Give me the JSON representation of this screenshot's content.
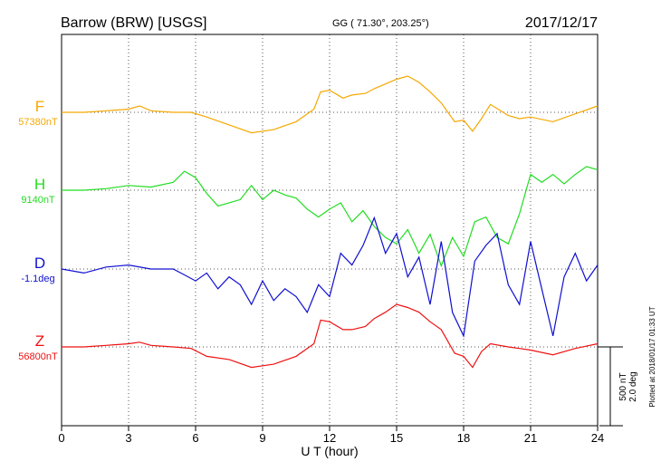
{
  "header": {
    "station": "Barrow (BRW)  [USGS]",
    "coords": "GG ( 71.30°, 203.25°)",
    "date": "2017/12/17"
  },
  "scale": {
    "nt": "500 nT",
    "deg": "2.0 deg"
  },
  "plotted": "Plotted at 2018/01/17 01:33 UT",
  "chart_data": {
    "type": "line",
    "xlabel": "U T (hour)",
    "xlim": [
      0,
      24
    ],
    "xticks": [
      "0",
      "3",
      "6",
      "9",
      "12",
      "15",
      "18",
      "21",
      "24"
    ],
    "grid": true,
    "series": [
      {
        "name": "F",
        "baseline_label": "57380nT",
        "color": "#f5a800",
        "x": [
          0,
          1,
          2,
          3,
          3.5,
          4,
          5,
          5.8,
          6.5,
          7.5,
          8.5,
          9.5,
          10.5,
          11.3,
          11.6,
          12,
          12.6,
          13,
          13.6,
          14,
          14.5,
          15,
          15.5,
          16,
          16.5,
          17,
          17.6,
          18,
          18.4,
          18.8,
          19.2,
          20,
          20.5,
          21,
          22,
          23,
          24
        ],
        "y": [
          0,
          0,
          10,
          20,
          40,
          10,
          0,
          0,
          -30,
          -80,
          -130,
          -110,
          -60,
          20,
          130,
          140,
          90,
          110,
          120,
          150,
          180,
          210,
          230,
          190,
          130,
          60,
          -60,
          -50,
          -120,
          -40,
          50,
          -20,
          -40,
          -30,
          -60,
          -10,
          40
        ]
      },
      {
        "name": "H",
        "baseline_label": "9140nT",
        "color": "#22dd22",
        "x": [
          0,
          1,
          2,
          3,
          4,
          5,
          5.5,
          6,
          6.5,
          7,
          8,
          8.5,
          9,
          9.5,
          10,
          10.5,
          11,
          11.5,
          12,
          12.5,
          13,
          13.5,
          14,
          14.5,
          15,
          15.5,
          16,
          16.5,
          17,
          17.5,
          18,
          18.5,
          19,
          19.5,
          20,
          20.5,
          21,
          21.5,
          22,
          22.5,
          23,
          23.5,
          24
        ],
        "y": [
          0,
          0,
          10,
          30,
          20,
          50,
          120,
          80,
          -20,
          -100,
          -60,
          30,
          -60,
          0,
          -30,
          -50,
          -120,
          -170,
          -120,
          -80,
          -200,
          -130,
          -230,
          -300,
          -340,
          -250,
          -400,
          -280,
          -480,
          -300,
          -420,
          -200,
          -170,
          -300,
          -340,
          -150,
          100,
          50,
          100,
          40,
          100,
          150,
          130
        ]
      },
      {
        "name": "D",
        "baseline_label": "-1.1deg",
        "color": "#1010d0",
        "x": [
          0,
          1,
          2,
          3,
          4,
          5,
          5.5,
          6,
          6.5,
          7,
          7.5,
          8,
          8.5,
          9,
          9.5,
          10,
          10.5,
          11,
          11.5,
          12,
          12.5,
          13,
          13.5,
          14,
          14.5,
          15,
          15.5,
          16,
          16.5,
          17,
          17.5,
          18,
          18.5,
          19,
          19.5,
          20,
          20.5,
          21,
          21.5,
          22,
          22.5,
          23,
          23.5,
          24
        ],
        "y": [
          0,
          -0.1,
          0.05,
          0.1,
          0,
          0,
          -0.15,
          -0.3,
          -0.1,
          -0.5,
          -0.2,
          -0.4,
          -0.9,
          -0.3,
          -0.8,
          -0.5,
          -0.7,
          -1.1,
          -0.4,
          -0.7,
          0.4,
          0.1,
          0.6,
          1.3,
          0.4,
          0.9,
          -0.2,
          0.3,
          -0.9,
          0.7,
          -1.1,
          -1.7,
          0.2,
          0.6,
          0.9,
          -0.4,
          -0.9,
          0.7,
          -0.5,
          -1.7,
          -0.2,
          0.4,
          -0.3,
          0.1
        ]
      },
      {
        "name": "Z",
        "baseline_label": "56800nT",
        "color": "#ee1111",
        "x": [
          0,
          1,
          2,
          3,
          3.5,
          4,
          5,
          5.8,
          6.5,
          7.5,
          8.5,
          9.5,
          10.5,
          11.3,
          11.6,
          12,
          12.6,
          13,
          13.6,
          14,
          14.5,
          15,
          15.5,
          16,
          16.5,
          17,
          17.6,
          18,
          18.4,
          18.8,
          19.2,
          20,
          20.5,
          21,
          22,
          23,
          24
        ],
        "y": [
          0,
          0,
          10,
          20,
          30,
          10,
          0,
          -10,
          -60,
          -80,
          -130,
          -110,
          -60,
          20,
          170,
          160,
          110,
          110,
          130,
          180,
          220,
          270,
          250,
          220,
          160,
          110,
          -40,
          -60,
          -130,
          -30,
          20,
          0,
          -10,
          -20,
          -50,
          -10,
          20
        ]
      }
    ]
  }
}
